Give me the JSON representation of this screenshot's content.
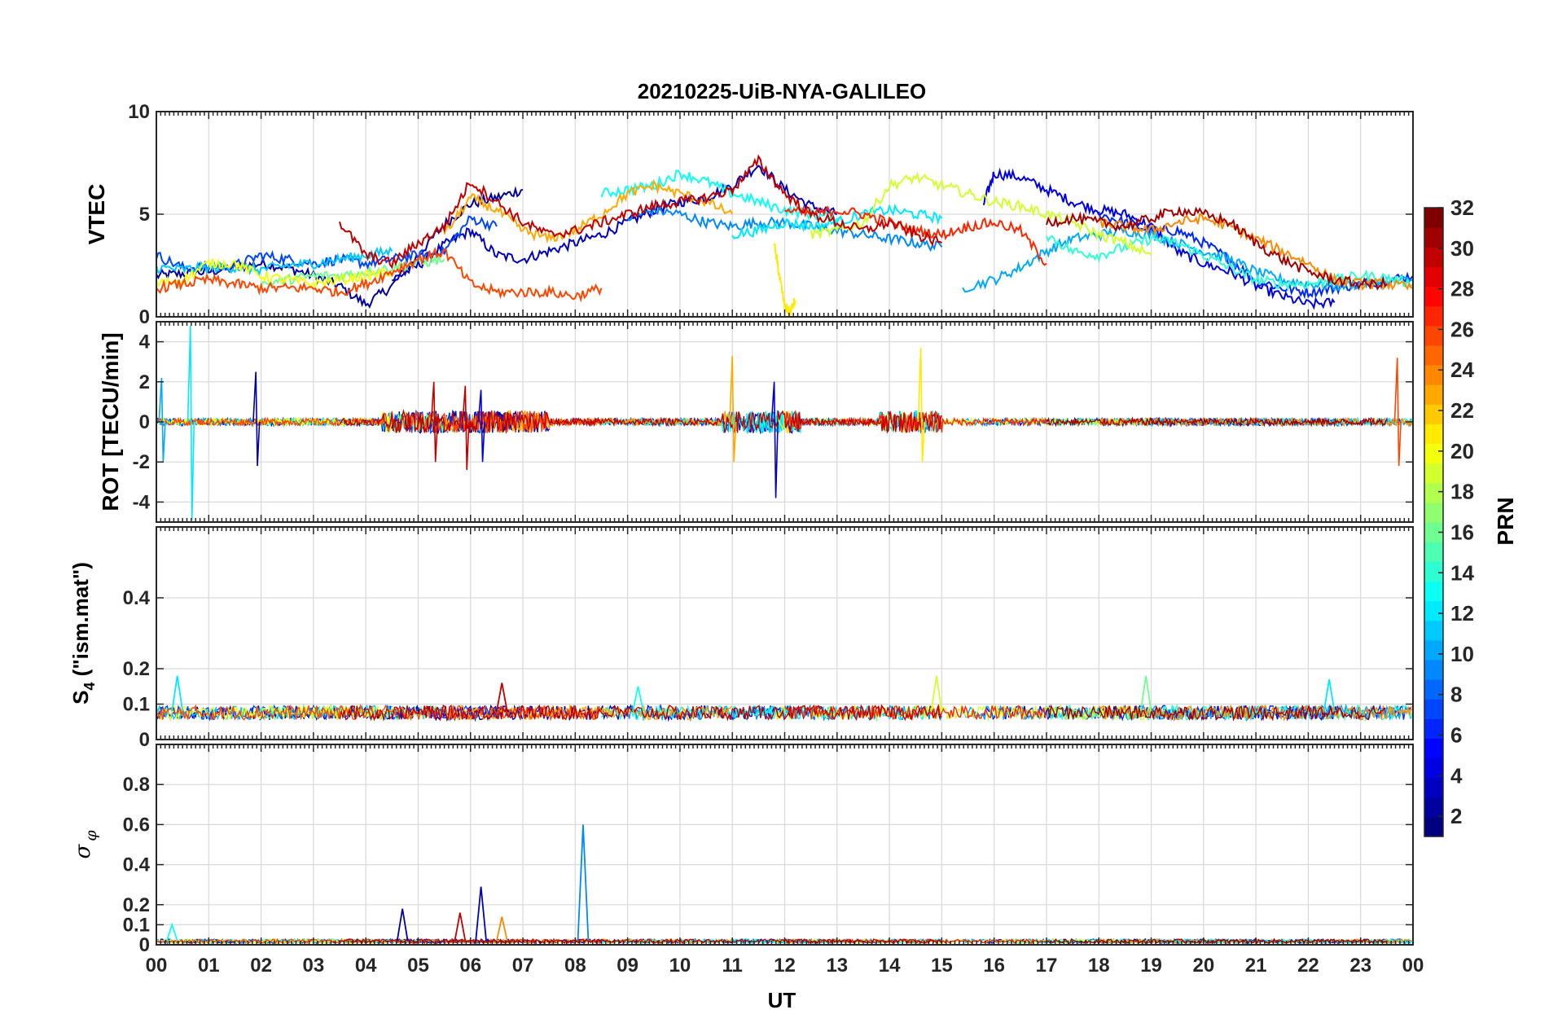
{
  "figure": {
    "title": "20210225-UiB-NYA-GALILEO",
    "xlabel": "UT",
    "x_ticks": [
      "00",
      "01",
      "02",
      "03",
      "04",
      "05",
      "06",
      "07",
      "08",
      "09",
      "10",
      "11",
      "12",
      "13",
      "14",
      "15",
      "16",
      "17",
      "18",
      "19",
      "20",
      "21",
      "22",
      "23",
      "00"
    ]
  },
  "colorbar": {
    "label": "PRN",
    "range": [
      1,
      32
    ],
    "ticks": [
      "2",
      "4",
      "6",
      "8",
      "10",
      "12",
      "14",
      "16",
      "18",
      "20",
      "22",
      "24",
      "26",
      "28",
      "30",
      "32"
    ],
    "tick_values": [
      2,
      4,
      6,
      8,
      10,
      12,
      14,
      16,
      18,
      20,
      22,
      24,
      26,
      28,
      30,
      32
    ],
    "colormap": "jet"
  },
  "chart_data": [
    {
      "type": "line",
      "panel": "VTEC",
      "ylabel": "VTEC",
      "xlim": [
        0,
        24
      ],
      "ylim": [
        0,
        10
      ],
      "yticks": [
        "0",
        "5",
        "10"
      ],
      "ytick_values": [
        0,
        5,
        10
      ],
      "grid": true,
      "series": [
        {
          "name": "PRN 2",
          "prn": 2,
          "x": [
            0,
            0.5,
            1,
            1.5,
            2,
            2.5,
            3,
            3.5,
            4,
            4.5,
            5,
            5.5,
            6,
            6.5,
            7
          ],
          "y": [
            2.0,
            2.1,
            2.2,
            2.4,
            2.6,
            2.4,
            2.0,
            1.5,
            0.6,
            1.5,
            3.0,
            4.5,
            5.5,
            5.8,
            6.2
          ]
        },
        {
          "name": "PRN 3",
          "prn": 3,
          "x": [
            4.5,
            5,
            5.5,
            6,
            6.5,
            7,
            7.5,
            8,
            8.5,
            9,
            9.5,
            10,
            10.5,
            11,
            11.5,
            12,
            12.5,
            13
          ],
          "y": [
            1.8,
            2.5,
            3.5,
            4.2,
            3.0,
            2.8,
            3.2,
            3.6,
            4.0,
            4.6,
            5.2,
            5.6,
            5.8,
            6.4,
            7.4,
            6.2,
            5.4,
            5.0
          ]
        },
        {
          "name": "PRN 4",
          "prn": 4,
          "x": [
            15.8,
            16,
            16.5,
            17,
            17.5,
            18,
            18.5,
            19,
            19.5,
            20,
            20.5,
            21,
            21.5,
            22,
            22.5
          ],
          "y": [
            5.5,
            7.0,
            6.8,
            6.2,
            5.6,
            5.2,
            5.0,
            4.4,
            3.2,
            2.6,
            2.2,
            1.5,
            1.0,
            0.6,
            0.7
          ]
        },
        {
          "name": "PRN 6",
          "prn": 6,
          "x": [
            18,
            18.5,
            19,
            19.5,
            20,
            20.5,
            21,
            21.5,
            22,
            22.5,
            23,
            23.5,
            24
          ],
          "y": [
            5.0,
            4.6,
            4.2,
            4.2,
            3.6,
            2.8,
            1.8,
            1.4,
            1.2,
            1.4,
            1.6,
            1.8,
            2.0
          ]
        },
        {
          "name": "PRN 7",
          "prn": 7,
          "x": [
            0,
            0.5,
            1,
            1.5,
            2,
            2.5,
            3,
            3.5,
            4,
            4.5,
            5,
            5.5,
            6,
            6.5
          ],
          "y": [
            3.0,
            2.4,
            2.4,
            2.5,
            3.0,
            2.8,
            2.6,
            2.8,
            2.6,
            2.8,
            3.0,
            3.2,
            4.8,
            4.4
          ]
        },
        {
          "name": "PRN 9",
          "prn": 9,
          "x": [
            9,
            9.5,
            10,
            10.5,
            11,
            11.5,
            12,
            12.5,
            13,
            13.5,
            14,
            14.5,
            15
          ],
          "y": [
            4.8,
            5.2,
            5.0,
            4.6,
            4.4,
            4.6,
            4.6,
            4.4,
            4.2,
            4.0,
            3.8,
            3.6,
            3.4
          ]
        },
        {
          "name": "PRN 10",
          "prn": 10,
          "x": [
            15.4,
            16,
            16.5,
            17,
            17.5,
            18,
            18.5,
            19,
            19.5,
            20,
            20.5,
            21,
            21.5,
            22,
            22.5,
            23,
            23.5,
            24
          ],
          "y": [
            1.4,
            1.8,
            2.4,
            3.2,
            3.8,
            4.0,
            4.2,
            4.0,
            3.6,
            3.2,
            2.8,
            2.2,
            1.8,
            1.6,
            1.5,
            1.6,
            1.7,
            1.8
          ]
        },
        {
          "name": "PRN 11",
          "prn": 11,
          "x": [
            0,
            0.5,
            1,
            1.5,
            2,
            2.5,
            3,
            3.5,
            4,
            4.5
          ],
          "y": [
            2.4,
            2.3,
            2.4,
            2.4,
            2.3,
            2.5,
            2.6,
            2.8,
            3.0,
            3.2
          ]
        },
        {
          "name": "PRN 12",
          "prn": 12,
          "x": [
            11,
            11.5,
            12,
            12.5,
            13,
            13.5,
            14,
            14.5,
            15
          ],
          "y": [
            4.0,
            4.2,
            4.6,
            4.4,
            4.6,
            5.0,
            5.2,
            5.0,
            4.8
          ]
        },
        {
          "name": "PRN 13",
          "prn": 13,
          "x": [
            8.5,
            9,
            9.5,
            10,
            10.5,
            11,
            11.5,
            12,
            12.5,
            13
          ],
          "y": [
            6.0,
            6.2,
            6.4,
            7.0,
            6.6,
            6.0,
            5.6,
            5.2,
            5.0,
            4.8
          ]
        },
        {
          "name": "PRN 14",
          "prn": 14,
          "x": [
            17,
            17.5,
            18,
            18.5,
            19,
            19.5,
            20,
            20.5,
            21,
            21.5,
            22,
            22.5,
            23,
            23.5,
            24
          ],
          "y": [
            4.0,
            3.2,
            3.0,
            3.4,
            3.8,
            3.6,
            3.0,
            2.4,
            1.8,
            1.6,
            1.6,
            1.8,
            2.0,
            1.9,
            1.6
          ]
        },
        {
          "name": "PRN 16",
          "prn": 16,
          "x": [
            2,
            2.5,
            3,
            3.5,
            4,
            4.5,
            5,
            5.5
          ],
          "y": [
            1.6,
            1.8,
            2.0,
            2.0,
            2.2,
            2.4,
            2.6,
            2.8
          ]
        },
        {
          "name": "PRN 19",
          "prn": 19,
          "x": [
            12.5,
            13,
            13.5,
            14,
            14.5,
            15,
            15.5,
            16,
            16.5,
            17,
            17.5,
            18,
            18.5,
            19
          ],
          "y": [
            4.0,
            4.2,
            4.6,
            6.4,
            6.8,
            6.4,
            6.0,
            5.6,
            5.4,
            5.0,
            4.6,
            4.0,
            3.6,
            3.0
          ]
        },
        {
          "name": "PRN 20",
          "prn": 20,
          "x": [
            0,
            0.5,
            1,
            1.5,
            2,
            2.5,
            3,
            3.5,
            4,
            4.5
          ],
          "y": [
            1.6,
            1.8,
            2.6,
            2.6,
            2.0,
            1.8,
            1.6,
            1.8,
            2.0,
            2.2
          ]
        },
        {
          "name": "PRN 21",
          "prn": 21,
          "x": [
            11.8,
            11.9,
            12,
            12.1,
            12.2
          ],
          "y": [
            3.5,
            2.0,
            0.5,
            0.2,
            0.8
          ]
        },
        {
          "name": "PRN 23",
          "prn": 23,
          "x": [
            5.5,
            6,
            6.5,
            7,
            7.5,
            8,
            8.5,
            9,
            9.5,
            10,
            10.5,
            11
          ],
          "y": [
            4.0,
            5.8,
            5.2,
            4.2,
            3.8,
            4.2,
            5.0,
            6.0,
            6.4,
            6.0,
            5.6,
            5.0
          ]
        },
        {
          "name": "PRN 24",
          "prn": 24,
          "x": [
            18,
            18.5,
            19,
            19.5,
            20,
            20.5,
            21,
            21.5,
            22,
            22.5,
            23,
            23.5,
            24
          ],
          "y": [
            4.6,
            4.4,
            4.2,
            4.6,
            4.8,
            4.4,
            3.8,
            3.2,
            2.6,
            1.8,
            1.6,
            1.6,
            1.4
          ]
        },
        {
          "name": "PRN 26",
          "prn": 26,
          "x": [
            0,
            0.5,
            1,
            1.5,
            2,
            2.5,
            3,
            3.5,
            4,
            4.5,
            5,
            5.5,
            6,
            6.5,
            7,
            7.5,
            8,
            8.5
          ],
          "y": [
            1.4,
            1.6,
            1.8,
            1.6,
            1.4,
            1.4,
            1.4,
            1.2,
            1.6,
            2.2,
            2.8,
            3.2,
            1.6,
            1.2,
            1.2,
            1.2,
            1.0,
            1.4
          ]
        },
        {
          "name": "PRN 27",
          "prn": 27,
          "x": [
            12,
            12.5,
            13,
            13.5,
            14,
            14.5,
            15,
            15.5,
            16,
            16.5,
            17
          ],
          "y": [
            5.2,
            5.0,
            5.2,
            5.0,
            4.6,
            4.2,
            4.0,
            4.4,
            4.6,
            4.2,
            2.6
          ]
        },
        {
          "name": "PRN 30",
          "prn": 30,
          "x": [
            3.5,
            4,
            4.5,
            5,
            5.5,
            6,
            6.5,
            7,
            7.5,
            8,
            8.5,
            9,
            9.5,
            10,
            10.5,
            11,
            11.5,
            12,
            12.5,
            13,
            13.5,
            14,
            14.5,
            15
          ],
          "y": [
            4.6,
            3.0,
            2.6,
            3.6,
            4.4,
            6.6,
            5.6,
            4.6,
            4.0,
            4.2,
            4.6,
            5.0,
            5.4,
            5.6,
            5.8,
            6.2,
            7.6,
            6.0,
            5.0,
            4.6,
            4.2,
            4.6,
            4.0,
            3.6
          ]
        },
        {
          "name": "PRN 31",
          "prn": 31,
          "x": [
            17,
            17.5,
            18,
            18.5,
            19,
            19.5,
            20,
            20.5,
            21,
            21.5,
            22,
            22.5,
            23,
            23.5
          ],
          "y": [
            4.6,
            4.8,
            4.6,
            4.4,
            4.8,
            5.2,
            5.0,
            4.6,
            3.6,
            2.8,
            2.2,
            1.8,
            1.6,
            1.6
          ]
        }
      ]
    },
    {
      "type": "line",
      "panel": "ROT",
      "ylabel": "ROT [TECU/min]",
      "xlim": [
        0,
        24
      ],
      "ylim": [
        -5,
        5
      ],
      "yticks": [
        "-4",
        "-2",
        "0",
        "2",
        "4"
      ],
      "ytick_values": [
        -4,
        -2,
        0,
        2,
        4
      ],
      "grid": true,
      "spikes": [
        {
          "prn": 12,
          "x": 0.65,
          "ymin": -4.9,
          "ymax": 4.8
        },
        {
          "prn": 10,
          "x": 0.1,
          "ymin": -2.0,
          "ymax": 2.2
        },
        {
          "prn": 2,
          "x": 1.9,
          "ymin": -2.2,
          "ymax": 2.5
        },
        {
          "prn": 30,
          "x": 5.3,
          "ymin": -2.0,
          "ymax": 2.0
        },
        {
          "prn": 30,
          "x": 5.9,
          "ymin": -2.4,
          "ymax": 1.8
        },
        {
          "prn": 4,
          "x": 6.2,
          "ymin": -2.0,
          "ymax": 1.6
        },
        {
          "prn": 23,
          "x": 11.0,
          "ymin": -2.0,
          "ymax": 3.3
        },
        {
          "prn": 3,
          "x": 11.8,
          "ymin": -3.8,
          "ymax": 2.0
        },
        {
          "prn": 21,
          "x": 14.6,
          "ymin": -2.0,
          "ymax": 3.7
        },
        {
          "prn": 26,
          "x": 23.7,
          "ymin": -2.2,
          "ymax": 3.2
        }
      ]
    },
    {
      "type": "line",
      "panel": "S4",
      "ylabel": "S4 (\"ism.mat\")",
      "xlim": [
        0,
        24
      ],
      "ylim": [
        0,
        0.6
      ],
      "yticks": [
        "0",
        "0.1",
        "0.2",
        "0.4"
      ],
      "ytick_values": [
        0,
        0.1,
        0.2,
        0.4
      ],
      "grid": true,
      "baseline_range": [
        0.04,
        0.12
      ],
      "peaks": [
        {
          "prn": 12,
          "x": 0.4,
          "y": 0.18
        },
        {
          "prn": 13,
          "x": 9.2,
          "y": 0.15
        },
        {
          "prn": 19,
          "x": 14.9,
          "y": 0.18
        },
        {
          "prn": 16,
          "x": 18.9,
          "y": 0.18
        },
        {
          "prn": 12,
          "x": 22.4,
          "y": 0.17
        },
        {
          "prn": 30,
          "x": 6.6,
          "y": 0.16
        }
      ]
    },
    {
      "type": "line",
      "panel": "SigmaPhi",
      "ylabel": "σ φ",
      "xlim": [
        0,
        24
      ],
      "ylim": [
        0,
        1
      ],
      "yticks": [
        "0",
        "0.1",
        "0.2",
        "0.4",
        "0.6",
        "0.8"
      ],
      "ytick_values": [
        0,
        0.1,
        0.2,
        0.4,
        0.6,
        0.8
      ],
      "grid": true,
      "baseline_range": [
        0.0,
        0.04
      ],
      "peaks": [
        {
          "prn": 9,
          "x": 8.15,
          "y": 0.6
        },
        {
          "prn": 3,
          "x": 6.2,
          "y": 0.29
        },
        {
          "prn": 2,
          "x": 4.7,
          "y": 0.18
        },
        {
          "prn": 30,
          "x": 5.8,
          "y": 0.16
        },
        {
          "prn": 13,
          "x": 0.3,
          "y": 0.1
        },
        {
          "prn": 24,
          "x": 6.6,
          "y": 0.14
        }
      ]
    }
  ]
}
